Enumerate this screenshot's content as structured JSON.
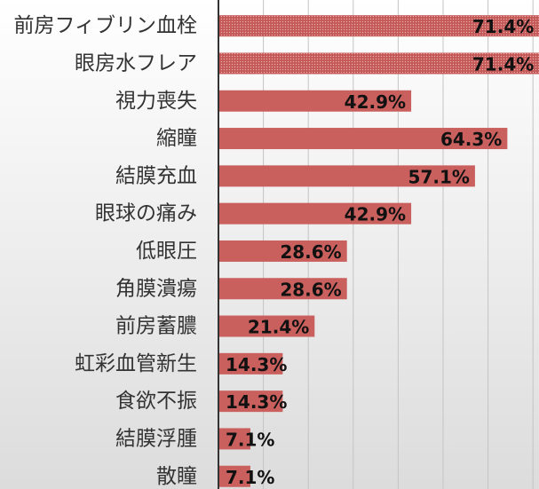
{
  "chart_data": {
    "type": "bar",
    "orientation": "horizontal",
    "categories": [
      "前房フィブリン血栓",
      "眼房水フレア",
      "視力喪失",
      "縮瞳",
      "結膜充血",
      "眼球の痛み",
      "低眼圧",
      "角膜潰瘍",
      "前房蓄膿",
      "虹彩血管新生",
      "食欲不振",
      "結膜浮腫",
      "散瞳"
    ],
    "values": [
      71.4,
      71.4,
      42.9,
      64.3,
      57.1,
      42.9,
      28.6,
      28.6,
      21.4,
      14.3,
      14.3,
      7.1,
      7.1
    ],
    "value_labels": [
      "71.4%",
      "71.4%",
      "42.9%",
      "64.3%",
      "57.1%",
      "42.9%",
      "28.6%",
      "28.6%",
      "21.4%",
      "14.3%",
      "14.3%",
      "7.1%",
      "7.1%"
    ],
    "xlim": [
      0,
      100
    ],
    "grid": true,
    "bar_color": "#c9605e",
    "highlight_bars": [
      0,
      1
    ],
    "highlight_pattern": "dotted",
    "title": "",
    "xlabel": "",
    "ylabel": ""
  }
}
